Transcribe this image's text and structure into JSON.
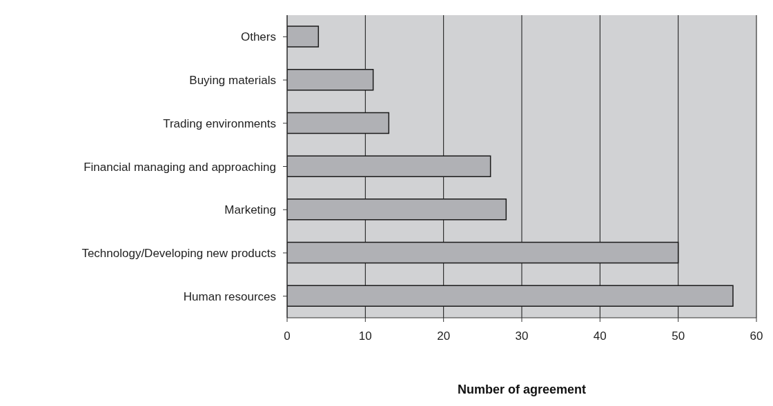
{
  "chart_data": {
    "type": "bar",
    "orientation": "horizontal",
    "xlabel": "Number of agreement",
    "categories": [
      "Others",
      "Buying materials",
      "Trading environments",
      "Financial managing and approaching",
      "Marketing",
      "Technology/Developing new products",
      "Human resources"
    ],
    "values": [
      4,
      11,
      13,
      26,
      28,
      50,
      57
    ],
    "color": "#b0b1b5",
    "xlim": [
      0,
      60
    ],
    "xticks": [
      0,
      10,
      20,
      30,
      40,
      50,
      60
    ],
    "grid": "x"
  }
}
